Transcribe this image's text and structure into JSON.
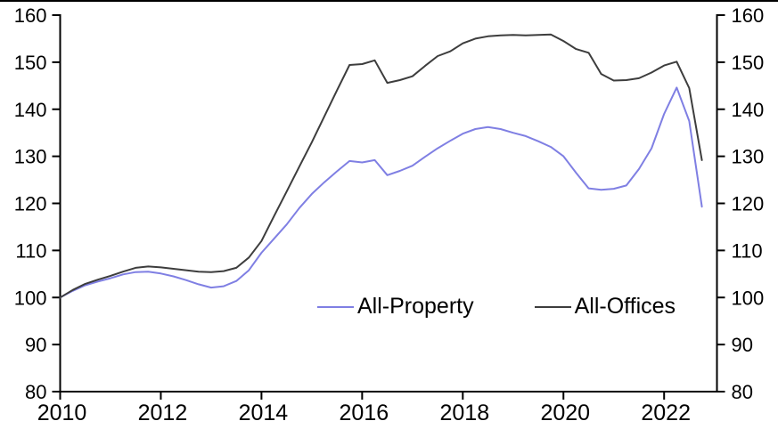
{
  "chart_data": {
    "type": "line",
    "title": "",
    "xlabel": "",
    "ylabel": "",
    "xlim": [
      2010,
      2023.05
    ],
    "ylim": [
      80,
      160
    ],
    "xticks": [
      2010,
      2012,
      2014,
      2016,
      2018,
      2020,
      2022
    ],
    "yticks": [
      80,
      90,
      100,
      110,
      120,
      130,
      140,
      150,
      160
    ],
    "grid": false,
    "legend_position": "inside-bottom-center",
    "axis_color": "#000000",
    "background_color": "#ffffff",
    "x": [
      2010.0,
      2010.25,
      2010.5,
      2010.75,
      2011.0,
      2011.25,
      2011.5,
      2011.75,
      2012.0,
      2012.25,
      2012.5,
      2012.75,
      2013.0,
      2013.25,
      2013.5,
      2013.75,
      2014.0,
      2014.25,
      2014.5,
      2014.75,
      2015.0,
      2015.25,
      2015.5,
      2015.75,
      2016.0,
      2016.25,
      2016.5,
      2016.75,
      2017.0,
      2017.25,
      2017.5,
      2017.75,
      2018.0,
      2018.25,
      2018.5,
      2018.75,
      2019.0,
      2019.25,
      2019.5,
      2019.75,
      2020.0,
      2020.25,
      2020.5,
      2020.75,
      2021.0,
      2021.25,
      2021.5,
      2021.75,
      2022.0,
      2022.25,
      2022.5,
      2022.75
    ],
    "series": [
      {
        "name": "All-Property",
        "color": "#7f7fe3",
        "values": [
          100.0,
          101.4,
          102.6,
          103.4,
          104.1,
          104.9,
          105.4,
          105.5,
          105.1,
          104.5,
          103.7,
          102.8,
          102.1,
          102.4,
          103.5,
          105.8,
          109.5,
          112.5,
          115.5,
          119.0,
          122.0,
          124.5,
          126.8,
          129.0,
          128.7,
          129.2,
          126.0,
          126.9,
          128.0,
          129.9,
          131.7,
          133.3,
          134.8,
          135.8,
          136.2,
          135.8,
          135.0,
          134.3,
          133.2,
          132.0,
          130.0,
          126.5,
          123.2,
          122.9,
          123.1,
          123.8,
          127.3,
          131.7,
          139.0,
          144.6,
          137.5,
          119.3
        ]
      },
      {
        "name": "All-Offices",
        "color": "#3d3d3d",
        "values": [
          100.0,
          101.6,
          102.9,
          103.8,
          104.6,
          105.5,
          106.3,
          106.6,
          106.4,
          106.1,
          105.8,
          105.5,
          105.4,
          105.6,
          106.3,
          108.5,
          112.0,
          117.3,
          122.5,
          127.8,
          133.0,
          138.5,
          144.0,
          149.4,
          149.6,
          150.4,
          145.6,
          146.2,
          147.0,
          149.2,
          151.3,
          152.3,
          154.0,
          155.0,
          155.5,
          155.7,
          155.8,
          155.7,
          155.8,
          155.9,
          154.5,
          152.8,
          152.0,
          147.5,
          146.1,
          146.2,
          146.6,
          147.8,
          149.3,
          150.1,
          144.5,
          129.2
        ]
      }
    ]
  }
}
